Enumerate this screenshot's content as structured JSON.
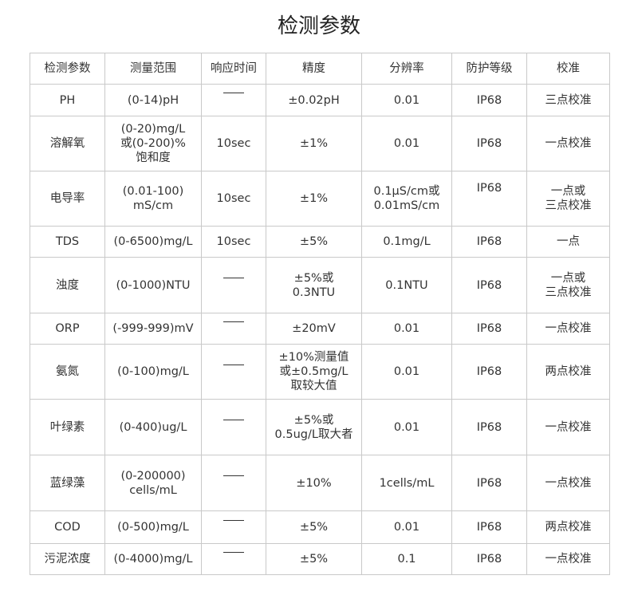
{
  "title": "检测参数",
  "table": {
    "headers": [
      "检测参数",
      "测量范围",
      "响应时间",
      "精度",
      "分辨率",
      "防护等级",
      "校准"
    ],
    "rows": [
      [
        "PH",
        "(0-14)pH",
        "——",
        "±0.02pH",
        "0.01",
        "IP68",
        "三点校准"
      ],
      [
        "溶解氧",
        "(0-20)mg/L\n或(0-200)%\n饱和度",
        "10sec",
        "±1%",
        "0.01",
        "IP68",
        "一点校准"
      ],
      [
        "电导率",
        "(0.01-100)\nmS/cm",
        "10sec",
        "±1%",
        "0.1μS/cm或\n0.01mS/cm",
        "IP68",
        "一点或\n三点校准"
      ],
      [
        "TDS",
        "(0-6500)mg/L",
        "10sec",
        "±5%",
        "0.1mg/L",
        "IP68",
        "一点"
      ],
      [
        "浊度",
        "(0-1000)NTU",
        "——",
        "±5%或\n0.3NTU",
        "0.1NTU",
        "IP68",
        "一点或\n三点校准"
      ],
      [
        "ORP",
        "(-999-999)mV",
        "——",
        "±20mV",
        "0.01",
        "IP68",
        "一点校准"
      ],
      [
        "氨氮",
        "(0-100)mg/L",
        "——",
        "±10%测量值\n或±0.5mg/L\n取较大值",
        "0.01",
        "IP68",
        "两点校准"
      ],
      [
        "叶绿素",
        "(0-400)ug/L",
        "——",
        "±5%或\n0.5ug/L取大者",
        "0.01",
        "IP68",
        "一点校准"
      ],
      [
        "蓝绿藻",
        "(0-200000)\ncells/mL",
        "——",
        "±10%",
        "1cells/mL",
        "IP68",
        "一点校准"
      ],
      [
        "COD",
        "(0-500)mg/L",
        "——",
        "±5%",
        "0.01",
        "IP68",
        "两点校准"
      ],
      [
        "污泥浓度",
        "(0-4000)mg/L",
        "——",
        "±5%",
        "0.1",
        "IP68",
        "一点校准"
      ]
    ]
  }
}
